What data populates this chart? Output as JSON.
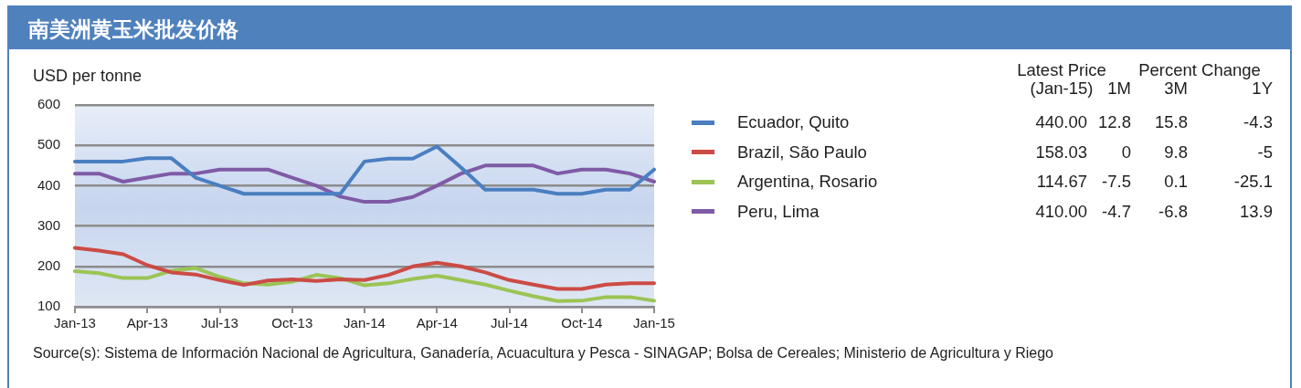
{
  "chart_data": [
    {
      "type": "line",
      "title": "南美洲黄玉米批发价格",
      "ylabel": "USD per tonne",
      "categories": [
        "Jan-13",
        null,
        null,
        "Apr-13",
        null,
        null,
        "Jul-13",
        null,
        null,
        "Oct-13",
        null,
        null,
        "Jan-14",
        null,
        null,
        "Apr-14",
        null,
        null,
        "Jul-14",
        null,
        null,
        "Oct-14",
        null,
        null,
        "Jan-15"
      ],
      "series": [
        {
          "name": "Ecuador, Quito",
          "color": "#4a7fc1",
          "values": [
            460,
            460,
            460,
            468,
            468,
            420,
            400,
            380,
            380,
            380,
            380,
            380,
            460,
            467,
            467,
            497,
            445,
            390,
            390,
            390,
            380,
            380,
            390,
            390,
            440
          ]
        },
        {
          "name": "Brazil, São Paulo",
          "color": "#cc4b45",
          "values": [
            246,
            239,
            230,
            203,
            185,
            180,
            166,
            154,
            165,
            168,
            164,
            168,
            166,
            179,
            200,
            209,
            200,
            185,
            166,
            155,
            144,
            144,
            155,
            158,
            158
          ]
        },
        {
          "name": "Argentina, Rosario",
          "color": "#9bc454",
          "values": [
            188,
            183,
            171,
            171,
            189,
            196,
            174,
            158,
            155,
            162,
            179,
            171,
            153,
            158,
            169,
            177,
            166,
            155,
            140,
            126,
            114,
            115,
            124,
            124,
            115
          ]
        },
        {
          "name": "Peru, Lima",
          "color": "#7f5ba6",
          "values": [
            430,
            430,
            410,
            420,
            430,
            430,
            440,
            440,
            440,
            420,
            400,
            373,
            360,
            360,
            372,
            400,
            430,
            450,
            450,
            450,
            430,
            440,
            440,
            430,
            410
          ]
        }
      ],
      "ylim": [
        100,
        600
      ],
      "yticks": [
        100,
        200,
        300,
        400,
        500,
        600
      ],
      "grid": "y",
      "legend": "right",
      "marker": "none",
      "annotations": [
        "Source(s): Sistema de Información Nacional de Agricultura, Ganadería, Acuacultura y Pesca - SINAGAP; Bolsa de Cereales; Ministerio de Agricultura y Riego"
      ]
    },
    {
      "type": "other",
      "annotations": [
        "Latest Price (Jan-15)",
        "Percent Change",
        "1M",
        "3M",
        "1Y",
        "440.00",
        "12.8",
        "15.8",
        "-4.3",
        "158.03",
        "0",
        "9.8",
        "-5",
        "114.67",
        "-7.5",
        "0.1",
        "-25.1",
        "410.00",
        "-4.7",
        "-6.8",
        "13.9"
      ]
    }
  ]
}
